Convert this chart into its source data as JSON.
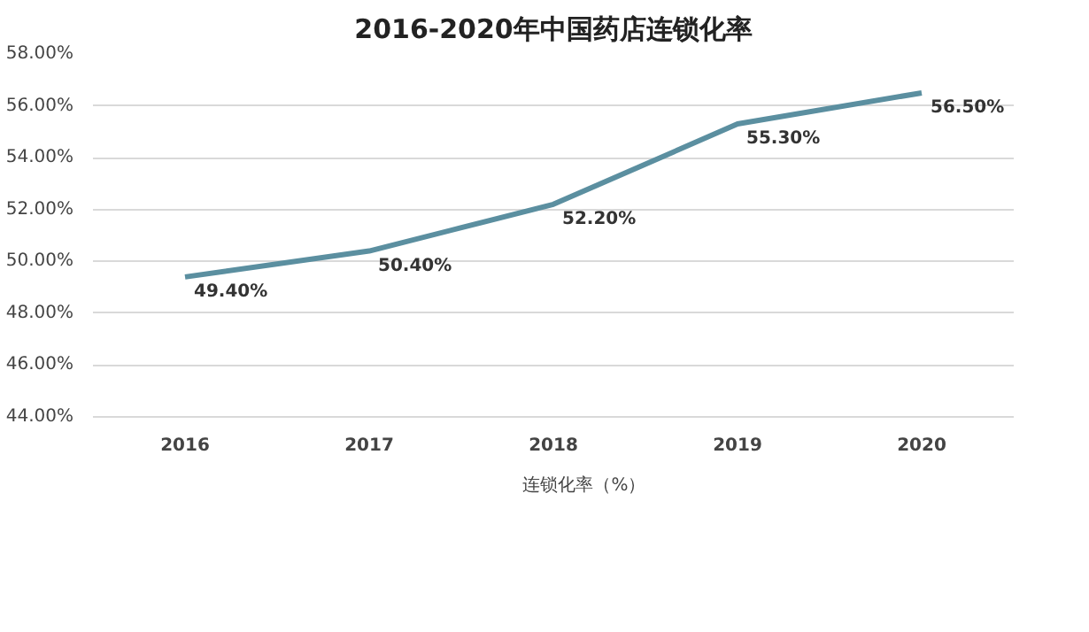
{
  "chart_data": {
    "type": "line",
    "title": "2016-2020年中国药店连锁化率",
    "categories": [
      "2016",
      "2017",
      "2018",
      "2019",
      "2020"
    ],
    "series": [
      {
        "name": "连锁化率（%）",
        "color": "#5b8fa0",
        "values": [
          49.4,
          50.4,
          52.2,
          55.3,
          56.5
        ],
        "value_labels": [
          "49.40%",
          "50.40%",
          "52.20%",
          "55.30%",
          "56.50%"
        ]
      }
    ],
    "ylim": [
      44,
      58
    ],
    "yticks": [
      {
        "value": 44,
        "label": "44.00%"
      },
      {
        "value": 46,
        "label": "46.00%"
      },
      {
        "value": 48,
        "label": "48.00%"
      },
      {
        "value": 50,
        "label": "50.00%"
      },
      {
        "value": 52,
        "label": "52.00%"
      },
      {
        "value": 54,
        "label": "54.00%"
      },
      {
        "value": 56,
        "label": "56.00%"
      },
      {
        "value": 58,
        "label": "58.00%"
      }
    ],
    "grid": "y",
    "legend": "bottom",
    "marker": "none",
    "line_style": "solid"
  }
}
